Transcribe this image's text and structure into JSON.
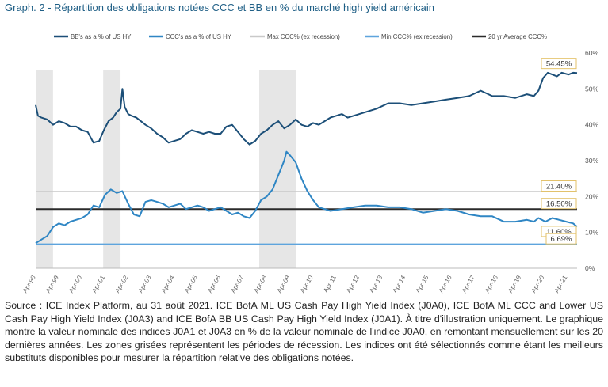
{
  "title": "Graph. 2 - Répartition des obligations notées CCC et BB en % du marché high yield américain",
  "caption": "Source : ICE Index Platform, au 31 août 2021. ICE BofA ML US Cash Pay High Yield Index (J0A0), ICE BofA ML CCC and Lower US Cash Pay High Yield Index (J0A3) and ICE BofA BB US Cash Pay High Yield Index (J0A1). À titre d'illustration uniquement. Le graphique montre la valeur nominale des indices J0A1 et J0A3 en % de la valeur nominale de l'indice J0A0, en remontant mensuellement sur les 20 dernières années. Les zones grisées représentent les périodes de récession. Les indices ont été sélectionnés comme étant les meilleurs substituts disponibles pour mesurer la répartition relative des obligations notées.",
  "colors": {
    "bb": "#1c4f78",
    "ccc": "#2f86c4",
    "max": "#c9c9c9",
    "min": "#5ea4dd",
    "avg": "#2b2b2b",
    "recession": "#e6e6e6",
    "label_border": "#e3c26a"
  },
  "chart_data": {
    "type": "line",
    "title": "Graph. 2 - Répartition des obligations notées CCC et BB en % du marché high yield américain",
    "x_start": 1998.25,
    "x_end": 2021.67,
    "ylim": [
      0,
      60
    ],
    "y_ticks": [
      0,
      10,
      20,
      30,
      40,
      50,
      60
    ],
    "y_tick_labels": [
      "0%",
      "10%",
      "20%",
      "30%",
      "40%",
      "50%",
      "60%"
    ],
    "axis_side": "right",
    "x_tick_labels": [
      "Apr-98",
      "Apr-99",
      "Apr-00",
      "Apr-01",
      "Apr-02",
      "Apr-03",
      "Apr-04",
      "Apr-05",
      "Apr-06",
      "Apr-07",
      "Apr-08",
      "Apr-09",
      "Apr-10",
      "Apr-11",
      "Apr-12",
      "Apr-13",
      "Apr-14",
      "Apr-15",
      "Apr-16",
      "Apr-17",
      "Apr-18",
      "Apr-19",
      "Apr-20",
      "Apr-21"
    ],
    "legend": [
      "BB's as a % of US HY",
      "CCC's as a % of US HY",
      "Max CCC% (ex recession)",
      "Min CCC% (ex recession)",
      "20 yr Average CCC%"
    ],
    "legend_position": "top",
    "recessions": [
      [
        1998.25,
        1999.0
      ],
      [
        2001.17,
        2001.92
      ],
      [
        2007.92,
        2009.5
      ]
    ],
    "series": [
      {
        "name": "BB's as a % of US HY",
        "x": [
          1998.25,
          1998.35,
          1998.5,
          1998.75,
          1999.0,
          1999.25,
          1999.5,
          1999.75,
          2000.0,
          2000.25,
          2000.5,
          2000.75,
          2001.0,
          2001.2,
          2001.4,
          2001.6,
          2001.75,
          2001.92,
          2002.0,
          2002.1,
          2002.25,
          2002.4,
          2002.6,
          2002.8,
          2003.0,
          2003.25,
          2003.5,
          2003.75,
          2004.0,
          2004.25,
          2004.5,
          2004.75,
          2005.0,
          2005.25,
          2005.5,
          2005.75,
          2006.0,
          2006.25,
          2006.5,
          2006.75,
          2007.0,
          2007.25,
          2007.5,
          2007.75,
          2008.0,
          2008.25,
          2008.5,
          2008.75,
          2009.0,
          2009.25,
          2009.5,
          2009.75,
          2010.0,
          2010.25,
          2010.5,
          2010.75,
          2011.0,
          2011.25,
          2011.5,
          2011.75,
          2012.0,
          2012.5,
          2013.0,
          2013.5,
          2014.0,
          2014.5,
          2015.0,
          2015.5,
          2016.0,
          2016.5,
          2017.0,
          2017.5,
          2018.0,
          2018.5,
          2019.0,
          2019.5,
          2019.8,
          2020.0,
          2020.2,
          2020.4,
          2020.6,
          2020.8,
          2021.0,
          2021.3,
          2021.5,
          2021.67
        ],
        "values": [
          45.5,
          42.5,
          42.0,
          41.5,
          40.0,
          41.0,
          40.5,
          39.5,
          39.5,
          38.5,
          38.0,
          35.0,
          35.5,
          38.5,
          41.0,
          42.0,
          43.5,
          44.5,
          50.0,
          45.0,
          43.0,
          42.5,
          42.0,
          41.0,
          40.0,
          39.0,
          37.5,
          36.5,
          35.0,
          35.5,
          36.0,
          37.5,
          38.5,
          38.0,
          37.5,
          38.0,
          37.5,
          37.5,
          39.5,
          40.0,
          38.0,
          36.0,
          34.5,
          35.5,
          37.5,
          38.5,
          40.0,
          41.0,
          39.0,
          40.0,
          41.5,
          40.0,
          39.5,
          40.5,
          40.0,
          41.0,
          42.0,
          42.5,
          43.0,
          42.0,
          42.5,
          43.5,
          44.5,
          46.0,
          46.0,
          45.5,
          46.0,
          46.5,
          47.0,
          47.5,
          48.0,
          49.5,
          48.0,
          48.0,
          47.5,
          48.5,
          48.0,
          49.5,
          53.0,
          54.5,
          54.0,
          53.5,
          54.5,
          54.0,
          54.5,
          54.45
        ]
      },
      {
        "name": "CCC's as a % of US HY",
        "x": [
          1998.25,
          1998.5,
          1998.75,
          1999.0,
          1999.25,
          1999.5,
          1999.75,
          2000.0,
          2000.25,
          2000.5,
          2000.75,
          2001.0,
          2001.25,
          2001.5,
          2001.75,
          2002.0,
          2002.25,
          2002.5,
          2002.75,
          2003.0,
          2003.25,
          2003.5,
          2003.75,
          2004.0,
          2004.25,
          2004.5,
          2004.75,
          2005.0,
          2005.25,
          2005.5,
          2005.75,
          2006.0,
          2006.25,
          2006.5,
          2006.75,
          2007.0,
          2007.25,
          2007.5,
          2007.75,
          2008.0,
          2008.25,
          2008.5,
          2008.75,
          2009.0,
          2009.1,
          2009.25,
          2009.5,
          2009.75,
          2010.0,
          2010.25,
          2010.5,
          2010.75,
          2011.0,
          2011.5,
          2012.0,
          2012.5,
          2013.0,
          2013.5,
          2014.0,
          2014.5,
          2015.0,
          2015.5,
          2016.0,
          2016.5,
          2017.0,
          2017.5,
          2018.0,
          2018.5,
          2019.0,
          2019.5,
          2019.8,
          2020.0,
          2020.3,
          2020.6,
          2020.9,
          2021.2,
          2021.5,
          2021.67
        ],
        "values": [
          7.0,
          8.0,
          9.0,
          11.5,
          12.5,
          12.0,
          13.0,
          13.5,
          14.0,
          15.0,
          17.5,
          17.0,
          20.5,
          22.0,
          21.0,
          21.5,
          18.0,
          15.0,
          14.5,
          18.5,
          19.0,
          18.5,
          18.0,
          17.0,
          17.5,
          18.0,
          16.5,
          17.0,
          17.5,
          17.0,
          16.0,
          16.5,
          17.0,
          16.0,
          15.0,
          15.5,
          14.5,
          14.0,
          16.0,
          19.0,
          20.0,
          22.0,
          26.0,
          30.0,
          32.5,
          31.5,
          29.5,
          25.0,
          21.5,
          19.0,
          17.0,
          16.5,
          16.0,
          16.5,
          17.0,
          17.5,
          17.5,
          17.0,
          17.0,
          16.5,
          15.5,
          16.0,
          16.5,
          16.0,
          15.0,
          14.5,
          14.5,
          13.0,
          13.0,
          13.5,
          13.0,
          14.0,
          13.0,
          14.0,
          13.5,
          13.0,
          12.5,
          11.6
        ]
      }
    ],
    "reference_lines": [
      {
        "name": "Max CCC% (ex recession)",
        "value": 21.4,
        "label": "21.40%"
      },
      {
        "name": "20 yr Average CCC%",
        "value": 16.5,
        "label": "16.50%"
      },
      {
        "name": "Min CCC% (ex recession)",
        "value": 6.69,
        "label": "6.69%"
      }
    ],
    "end_labels": [
      {
        "series": "BB's as a % of US HY",
        "value": 54.45,
        "label": "54.45%"
      },
      {
        "series": "CCC's as a % of US HY",
        "value": 11.6,
        "label": "11.60%"
      }
    ]
  }
}
